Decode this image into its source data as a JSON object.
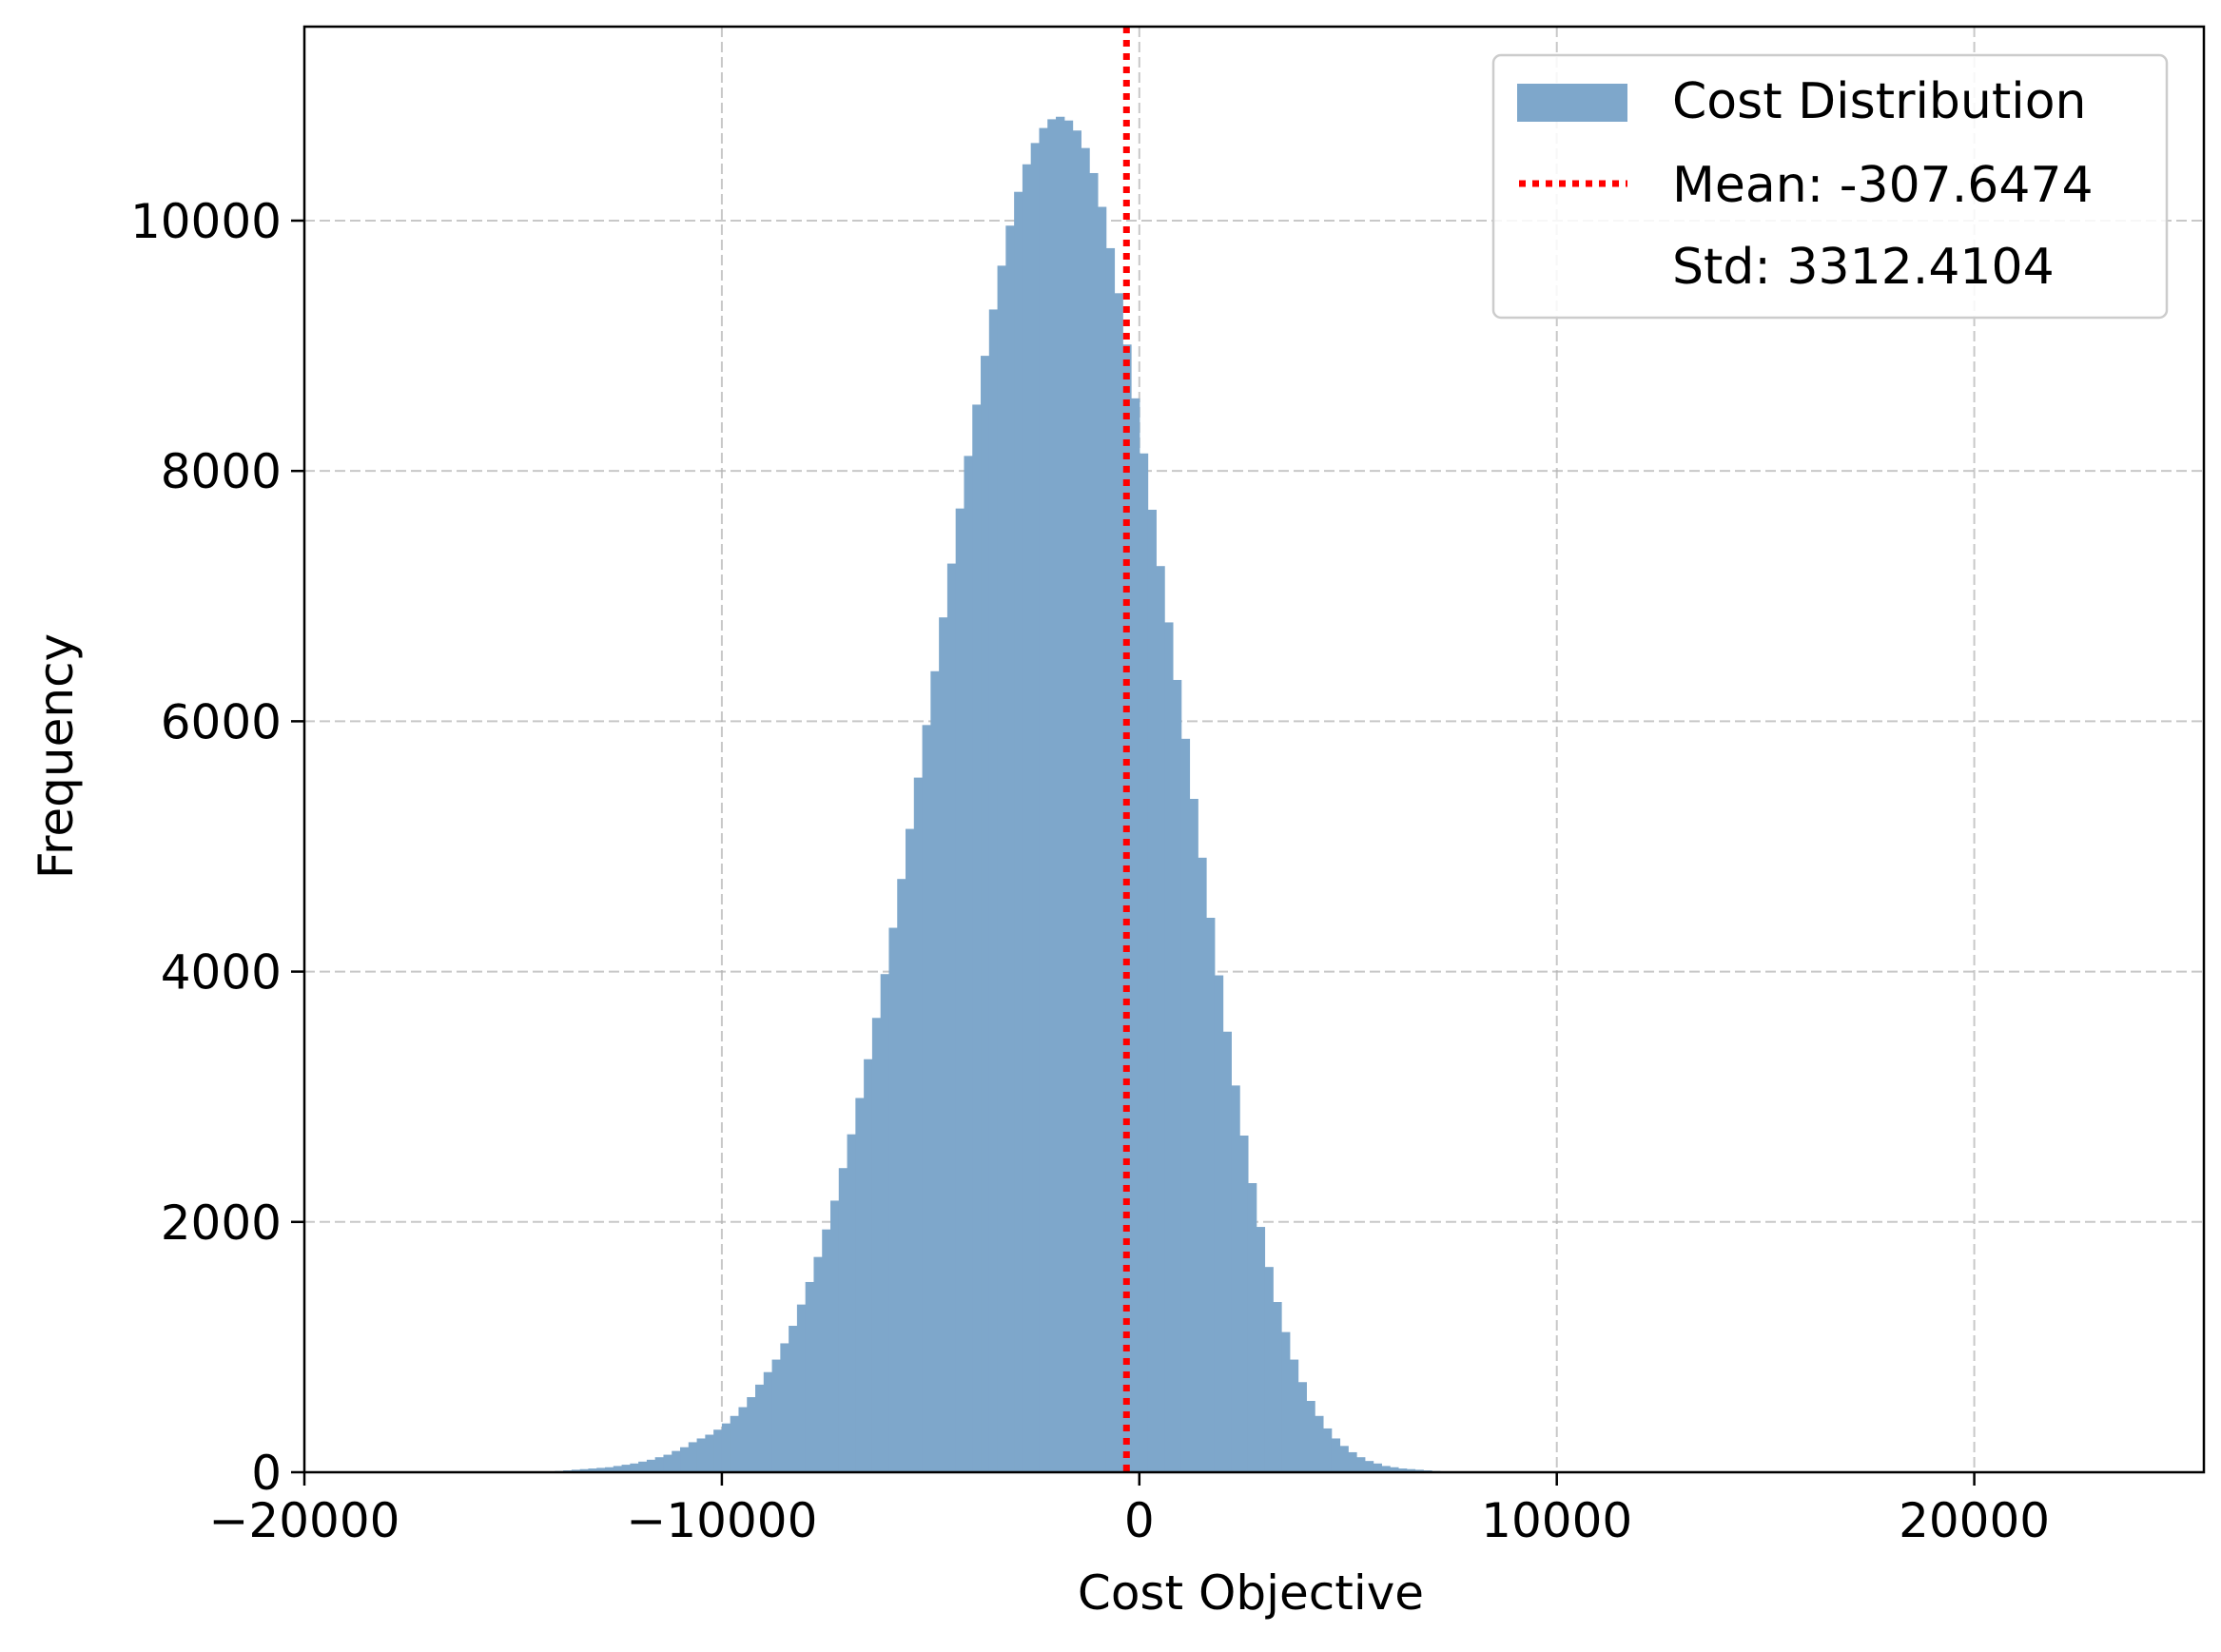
{
  "chart_data": {
    "type": "bar",
    "subtype": "histogram",
    "title": "",
    "xlabel": "Cost Objective",
    "ylabel": "Frequency",
    "xlim": [
      -20000,
      25500
    ],
    "ylim": [
      0,
      11550
    ],
    "x_ticks": [
      -20000,
      -10000,
      0,
      10000,
      20000
    ],
    "x_tick_labels": [
      "−20000",
      "−10000",
      "0",
      "10000",
      "20000"
    ],
    "y_ticks": [
      0,
      2000,
      4000,
      6000,
      8000,
      10000
    ],
    "y_tick_labels": [
      "0",
      "2000",
      "4000",
      "6000",
      "8000",
      "10000"
    ],
    "grid": true,
    "legend_position": "top-right",
    "bin_width": 200,
    "hist_color": "#7ea7cb",
    "mean_line_color": "#ff0000",
    "series": [
      {
        "name": "Cost Distribution",
        "kind": "histogram",
        "bin_start": -14000,
        "bin_width": 200,
        "values": [
          10,
          15,
          20,
          25,
          30,
          35,
          40,
          50,
          60,
          70,
          85,
          100,
          120,
          140,
          170,
          200,
          240,
          270,
          300,
          340,
          390,
          450,
          520,
          600,
          700,
          800,
          900,
          1030,
          1170,
          1340,
          1520,
          1720,
          1940,
          2170,
          2430,
          2700,
          2990,
          3300,
          3630,
          3980,
          4350,
          4740,
          5140,
          5550,
          5970,
          6400,
          6830,
          7260,
          7700,
          8120,
          8530,
          8920,
          9290,
          9640,
          9960,
          10230,
          10450,
          10620,
          10740,
          10810,
          10830,
          10800,
          10720,
          10580,
          10380,
          10110,
          9780,
          9420,
          9010,
          8580,
          8140,
          7690,
          7240,
          6790,
          6330,
          5860,
          5380,
          4910,
          4430,
          3970,
          3520,
          3090,
          2690,
          2310,
          1960,
          1640,
          1360,
          1120,
          900,
          720,
          570,
          450,
          350,
          270,
          210,
          160,
          120,
          90,
          70,
          50,
          40,
          30,
          25,
          20,
          15,
          10
        ]
      },
      {
        "name": "Mean: -307.6474",
        "kind": "vline",
        "x": -307.6474
      },
      {
        "name": "Std: 3312.4104",
        "kind": "legend-text"
      }
    ]
  },
  "legend": {
    "hist_label": "Cost Distribution",
    "mean_label": "Mean: -307.6474",
    "std_label": "Std: 3312.4104"
  }
}
